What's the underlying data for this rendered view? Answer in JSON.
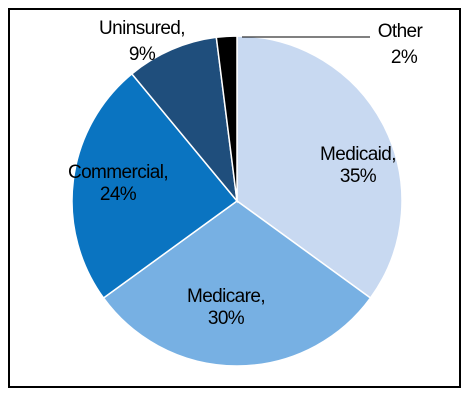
{
  "chart_data": {
    "type": "pie",
    "title": "",
    "slices": [
      {
        "label": "Medicaid",
        "value": 35,
        "value_label": "35%",
        "color": "#c8d9f1"
      },
      {
        "label": "Medicare",
        "value": 30,
        "value_label": "30%",
        "color": "#77b0e3"
      },
      {
        "label": "Commercial",
        "value": 24,
        "value_label": "24%",
        "color": "#0a74c1"
      },
      {
        "label": "Uninsured",
        "value": 9,
        "value_label": "9%",
        "color": "#1f4e7c"
      },
      {
        "label": "Other",
        "value": 2,
        "value_label": "2%",
        "color": "#000000"
      }
    ],
    "start_position": "top",
    "direction": "clockwise",
    "edge_color": "#ffffff",
    "legend": "none"
  }
}
